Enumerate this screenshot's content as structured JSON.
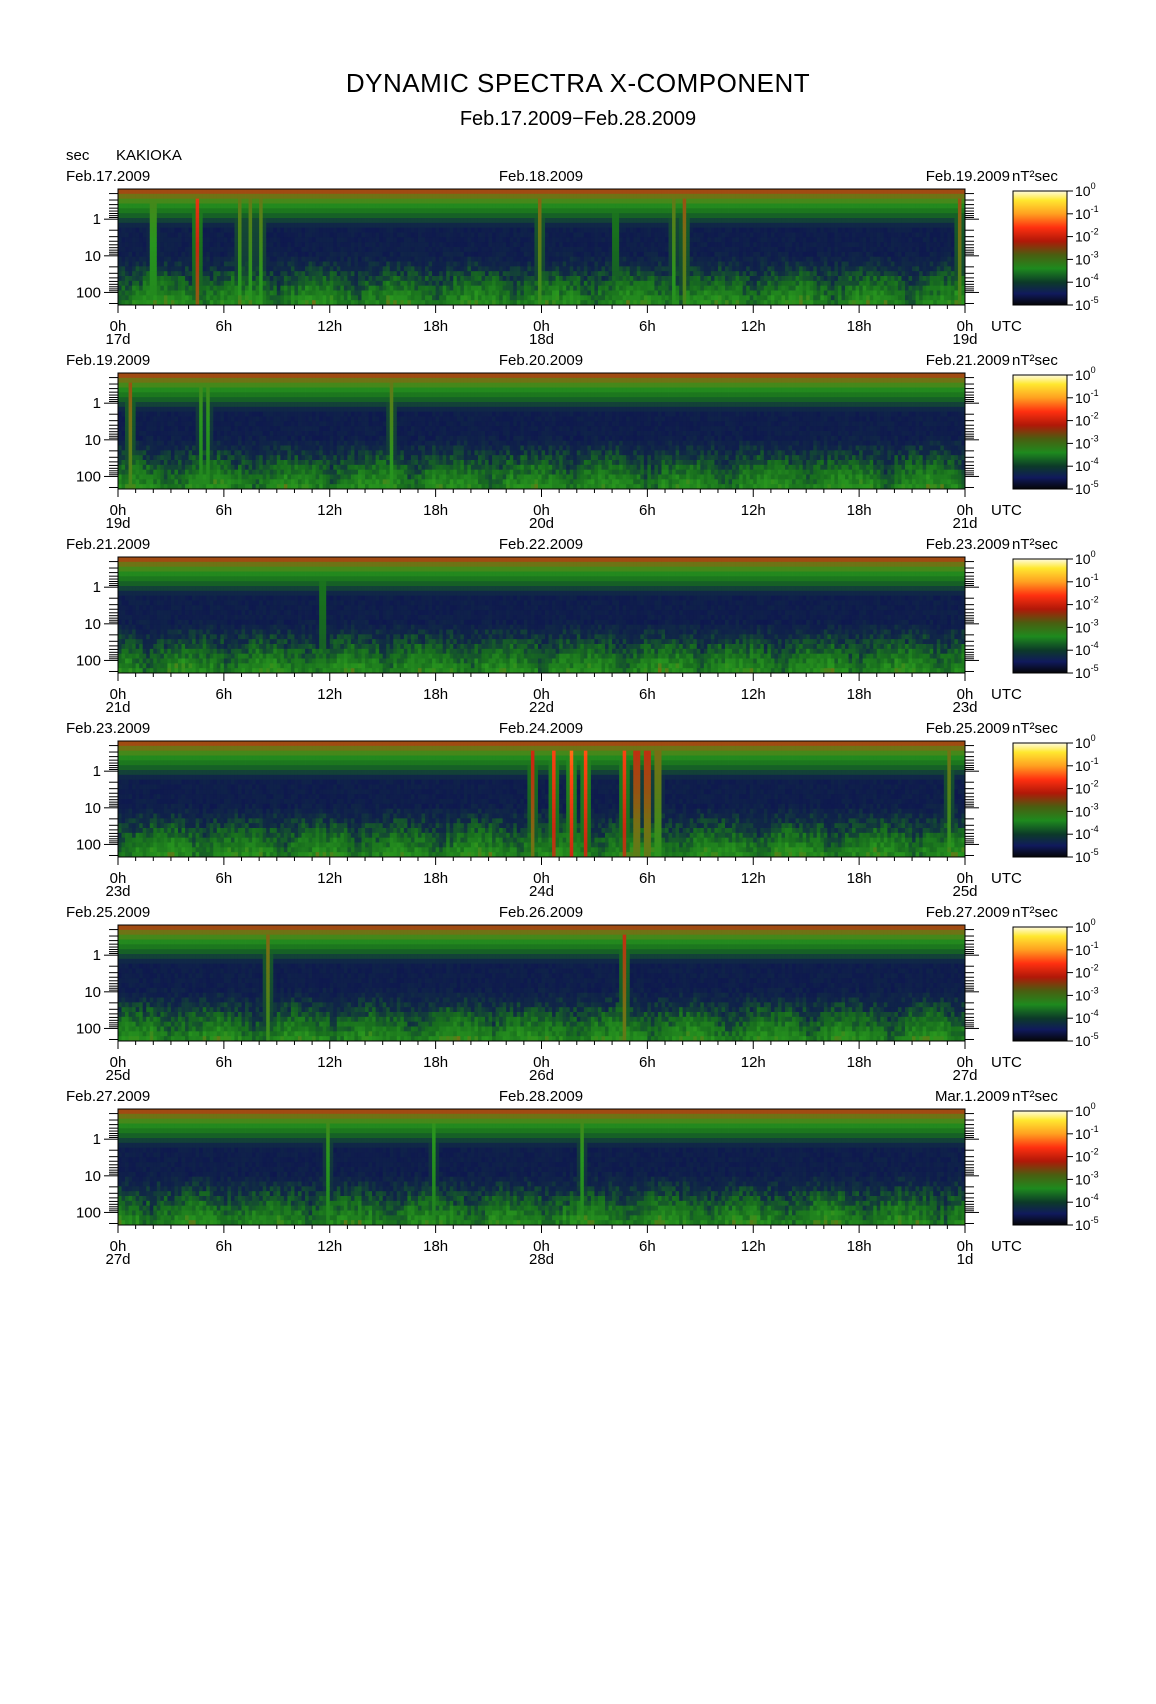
{
  "title": "DYNAMIC SPECTRA X-COMPONENT",
  "subtitle": "Feb.17.2009−Feb.28.2009",
  "unit_label": "sec",
  "station": "KAKIOKA",
  "colors": {
    "background": "#ffffff",
    "spectrum_floor": "#0a0a14",
    "spectrum_low": "#101a5c",
    "spectrum_mid": "#1e8a1e",
    "spectrum_high": "#e02010",
    "spectrum_peak": "#ffe830"
  },
  "chart_data": [
    {
      "type": "heatmap",
      "top_left_date": "Feb.17.2009",
      "center_date": "Feb.18.2009",
      "right_date": "Feb.19.2009",
      "colorbar_unit": "nT²sec",
      "x_unit": "UTC",
      "x_tick_labels": [
        "0h",
        "6h",
        "12h",
        "18h",
        "0h",
        "6h",
        "12h",
        "18h",
        "0h"
      ],
      "day_labels": [
        "17d",
        "18d",
        "19d"
      ],
      "y_tick_labels": [
        "1",
        "10",
        "100"
      ],
      "y_range_sec": [
        0.15,
        220
      ],
      "y_log": true,
      "colorbar_ticks": [
        "10^0",
        "10^-1",
        "10^-2",
        "10^-3",
        "10^-4",
        "10^-5"
      ],
      "colorbar_range": [
        1e-05,
        1
      ],
      "bursts": [
        {
          "t_hour": 1.9,
          "intensity": 0.78
        },
        {
          "t_hour": 4.4,
          "intensity": 0.82
        },
        {
          "t_hour": 6.8,
          "intensity": 0.66
        },
        {
          "t_hour": 7.4,
          "intensity": 0.66
        },
        {
          "t_hour": 8.0,
          "intensity": 0.66
        },
        {
          "t_hour": 23.8,
          "intensity": 0.7
        },
        {
          "t_hour": 28.1,
          "intensity": 0.6
        },
        {
          "t_hour": 31.4,
          "intensity": 0.66
        },
        {
          "t_hour": 32.0,
          "intensity": 0.72
        },
        {
          "t_hour": 47.6,
          "intensity": 0.72
        }
      ]
    },
    {
      "type": "heatmap",
      "top_left_date": "Feb.19.2009",
      "center_date": "Feb.20.2009",
      "right_date": "Feb.21.2009",
      "colorbar_unit": "nT²sec",
      "x_unit": "UTC",
      "x_tick_labels": [
        "0h",
        "6h",
        "12h",
        "18h",
        "0h",
        "6h",
        "12h",
        "18h",
        "0h"
      ],
      "day_labels": [
        "19d",
        "20d",
        "21d"
      ],
      "y_tick_labels": [
        "1",
        "10",
        "100"
      ],
      "y_range_sec": [
        0.15,
        220
      ],
      "y_log": true,
      "colorbar_ticks": [
        "10^0",
        "10^-1",
        "10^-2",
        "10^-3",
        "10^-4",
        "10^-5"
      ],
      "colorbar_range": [
        1e-05,
        1
      ],
      "bursts": [
        {
          "t_hour": 0.6,
          "intensity": 0.72
        },
        {
          "t_hour": 4.6,
          "intensity": 0.62
        },
        {
          "t_hour": 5.0,
          "intensity": 0.62
        },
        {
          "t_hour": 15.4,
          "intensity": 0.66
        }
      ]
    },
    {
      "type": "heatmap",
      "top_left_date": "Feb.21.2009",
      "center_date": "Feb.22.2009",
      "right_date": "Feb.23.2009",
      "colorbar_unit": "nT²sec",
      "x_unit": "UTC",
      "x_tick_labels": [
        "0h",
        "6h",
        "12h",
        "18h",
        "0h",
        "6h",
        "12h",
        "18h",
        "0h"
      ],
      "day_labels": [
        "21d",
        "22d",
        "23d"
      ],
      "y_tick_labels": [
        "1",
        "10",
        "100"
      ],
      "y_range_sec": [
        0.15,
        220
      ],
      "y_log": true,
      "colorbar_ticks": [
        "10^0",
        "10^-1",
        "10^-2",
        "10^-3",
        "10^-4",
        "10^-5"
      ],
      "colorbar_range": [
        1e-05,
        1
      ],
      "bursts": [
        {
          "t_hour": 11.5,
          "intensity": 0.6
        }
      ]
    },
    {
      "type": "heatmap",
      "top_left_date": "Feb.23.2009",
      "center_date": "Feb.24.2009",
      "right_date": "Feb.25.2009",
      "colorbar_unit": "nT²sec",
      "x_unit": "UTC",
      "x_tick_labels": [
        "0h",
        "6h",
        "12h",
        "18h",
        "0h",
        "6h",
        "12h",
        "18h",
        "0h"
      ],
      "day_labels": [
        "23d",
        "24d",
        "25d"
      ],
      "y_tick_labels": [
        "1",
        "10",
        "100"
      ],
      "y_range_sec": [
        0.15,
        220
      ],
      "y_log": true,
      "colorbar_ticks": [
        "10^0",
        "10^-1",
        "10^-2",
        "10^-3",
        "10^-4",
        "10^-5"
      ],
      "colorbar_range": [
        1e-05,
        1
      ],
      "bursts": [
        {
          "t_hour": 23.4,
          "intensity": 0.78
        },
        {
          "t_hour": 24.6,
          "intensity": 0.86
        },
        {
          "t_hour": 25.6,
          "intensity": 0.9
        },
        {
          "t_hour": 26.4,
          "intensity": 0.88
        },
        {
          "t_hour": 28.6,
          "intensity": 0.86
        },
        {
          "t_hour": 29.3,
          "intensity": 0.95
        },
        {
          "t_hour": 29.9,
          "intensity": 0.95
        },
        {
          "t_hour": 30.5,
          "intensity": 0.86
        },
        {
          "t_hour": 47.0,
          "intensity": 0.68
        }
      ]
    },
    {
      "type": "heatmap",
      "top_left_date": "Feb.25.2009",
      "center_date": "Feb.26.2009",
      "right_date": "Feb.27.2009",
      "colorbar_unit": "nT²sec",
      "x_unit": "UTC",
      "x_tick_labels": [
        "0h",
        "6h",
        "12h",
        "18h",
        "0h",
        "6h",
        "12h",
        "18h",
        "0h"
      ],
      "day_labels": [
        "25d",
        "26d",
        "27d"
      ],
      "y_tick_labels": [
        "1",
        "10",
        "100"
      ],
      "y_range_sec": [
        0.15,
        220
      ],
      "y_log": true,
      "colorbar_ticks": [
        "10^0",
        "10^-1",
        "10^-2",
        "10^-3",
        "10^-4",
        "10^-5"
      ],
      "colorbar_range": [
        1e-05,
        1
      ],
      "bursts": [
        {
          "t_hour": 8.4,
          "intensity": 0.7
        },
        {
          "t_hour": 28.6,
          "intensity": 0.76
        }
      ]
    },
    {
      "type": "heatmap",
      "top_left_date": "Feb.27.2009",
      "center_date": "Feb.28.2009",
      "right_date": "Mar.1.2009",
      "colorbar_unit": "nT²sec",
      "x_unit": "UTC",
      "x_tick_labels": [
        "0h",
        "6h",
        "12h",
        "18h",
        "0h",
        "6h",
        "12h",
        "18h",
        "0h"
      ],
      "day_labels": [
        "27d",
        "28d",
        "1d"
      ],
      "y_tick_labels": [
        "1",
        "10",
        "100"
      ],
      "y_range_sec": [
        0.15,
        220
      ],
      "y_log": true,
      "colorbar_ticks": [
        "10^0",
        "10^-1",
        "10^-2",
        "10^-3",
        "10^-4",
        "10^-5"
      ],
      "colorbar_range": [
        1e-05,
        1
      ],
      "bursts": [
        {
          "t_hour": 11.8,
          "intensity": 0.62
        },
        {
          "t_hour": 17.8,
          "intensity": 0.6
        },
        {
          "t_hour": 26.2,
          "intensity": 0.62
        }
      ]
    }
  ]
}
